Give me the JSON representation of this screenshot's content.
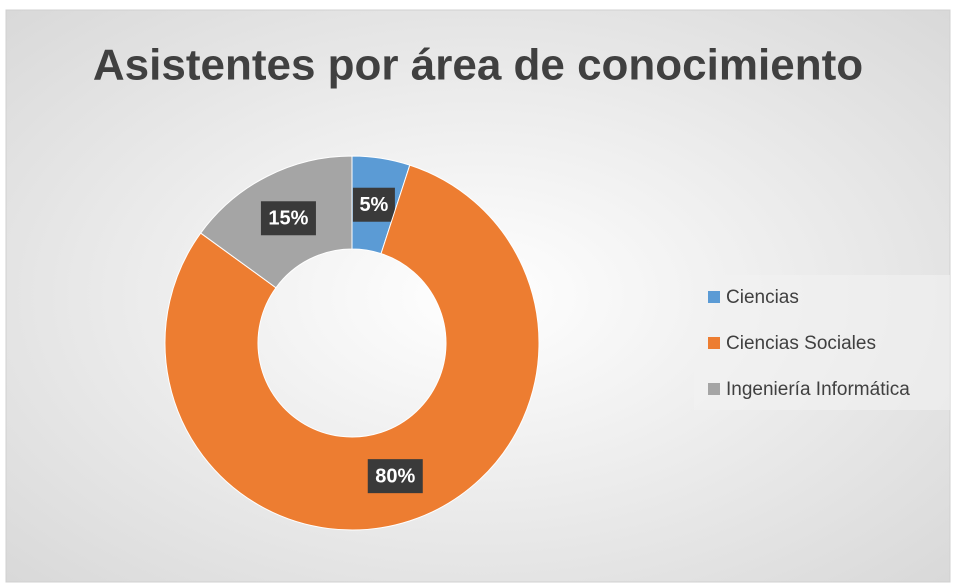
{
  "chart_data": {
    "type": "donut",
    "title": "Asistentes por área de conocimiento",
    "categories": [
      "Ciencias",
      "Ciencias Sociales",
      "Ingeniería Informática"
    ],
    "values": [
      5,
      80,
      15
    ],
    "value_labels": [
      "5%",
      "80%",
      "15%"
    ],
    "colors": [
      "#5b9bd5",
      "#ed7d31",
      "#a5a5a5"
    ],
    "legend": "right"
  }
}
